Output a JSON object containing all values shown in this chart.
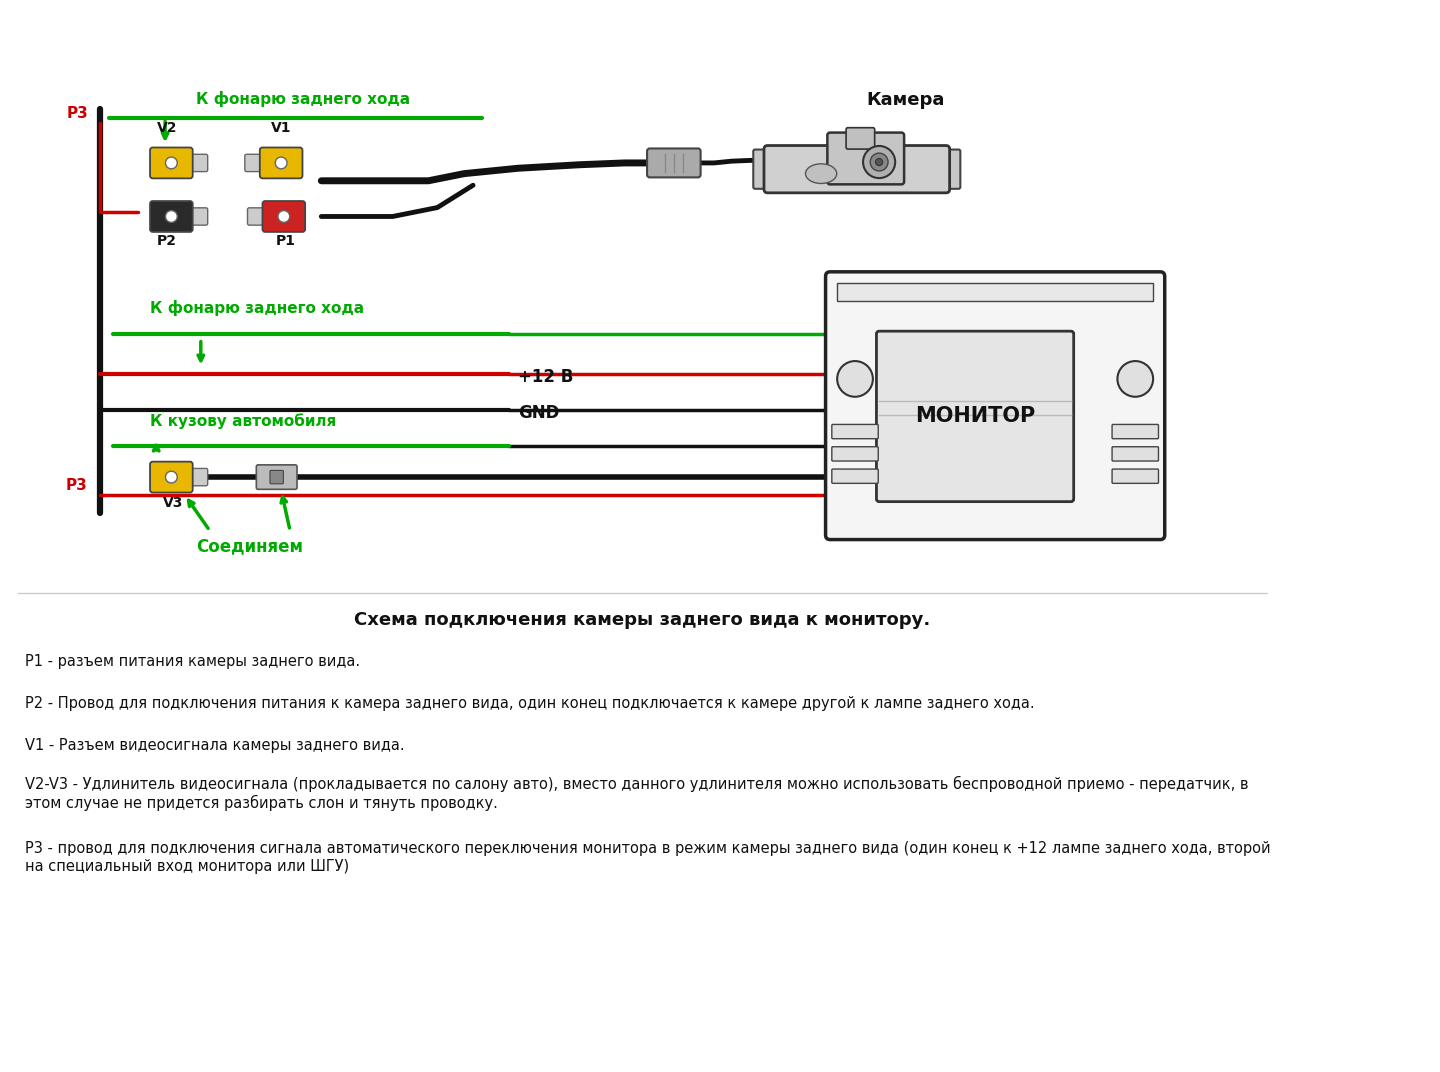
{
  "bg_color": "#ffffff",
  "diagram_title": "Схема подключения камеры заднего вида к монитору.",
  "legend_lines": [
    "P1 - разъем питания камеры заднего вида.",
    "P2 - Провод для подключения питания к камера заднего вида, один конец подключается к камере другой к лампе заднего хода.",
    "V1 - Разъем видеосигнала камеры заднего вида.",
    "V2-V3 - Удлинитель видеосигнала (прокладывается по салону авто), вместо данного удлинителя можно использовать беспроводной приемо - передатчик, в\nэтом случае не придется разбирать слон и тянуть проводку.",
    "Р3 - провод для подключения сигнала автоматического переключения монитора в режим камеры заднего вида (один конец к +12 лампе заднего хода, второй\nна специальный вход монитора или ШГУ)"
  ],
  "label_camera": "Камера",
  "label_monitor": "МОНИТОР",
  "label_plus12": "+12 В",
  "label_gnd": "GND",
  "label_top_green": "К фонарю заднего хода",
  "label_mid_green": "К фонарю заднего хода",
  "label_kuzov": "К кузову автомобиля",
  "label_soedinyaem": "Соединяем",
  "label_p1": "P1",
  "label_p2": "P2",
  "label_v1": "V1",
  "label_v2": "V2",
  "label_v3": "V3",
  "label_p3_top": "P3",
  "label_p3_bot": "P3",
  "color_green": "#00aa00",
  "color_red": "#cc0000",
  "color_black": "#111111",
  "color_yellow": "#e8b800",
  "color_gray": "#888888",
  "color_text": "#111111"
}
